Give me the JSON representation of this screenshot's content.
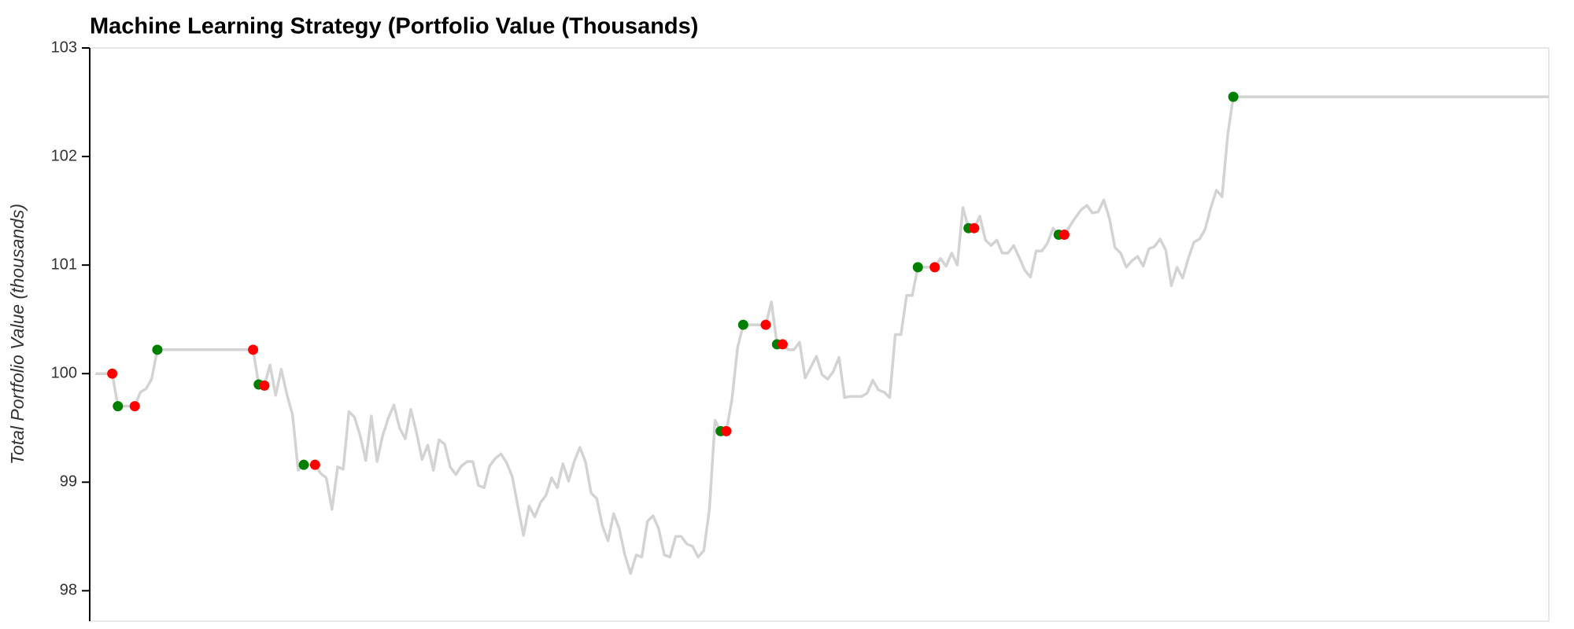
{
  "chart_data": {
    "type": "line",
    "title": "Machine Learning Strategy (Portfolio Value (Thousands)",
    "y_label": "Total Portfolio Value (thousands)",
    "ylim": [
      97.72,
      103
    ],
    "yticks": [
      98,
      99,
      100,
      101,
      102,
      103
    ],
    "xlim": [
      -1,
      258
    ],
    "series": [
      {
        "color": "#d3d3d3",
        "x": [
          0,
          3,
          4,
          7,
          8,
          9,
          10,
          11,
          28,
          29,
          30,
          31,
          32,
          33,
          34,
          35,
          36,
          37,
          39,
          40,
          41,
          42,
          43,
          44,
          45,
          46,
          47,
          48,
          49,
          50,
          51,
          52,
          53,
          54,
          55,
          56,
          57,
          58,
          59,
          60,
          61,
          62,
          63,
          64,
          65,
          66,
          67,
          68,
          69,
          70,
          71,
          72,
          73,
          74,
          75,
          76,
          77,
          78,
          79,
          80,
          81,
          82,
          83,
          84,
          85,
          86,
          87,
          88,
          89,
          90,
          91,
          92,
          93,
          94,
          95,
          96,
          97,
          98,
          99,
          100,
          101,
          102,
          103,
          104,
          105,
          106,
          107,
          108,
          109,
          110,
          111,
          112,
          113,
          114,
          115,
          119,
          120,
          121,
          122,
          123,
          124,
          125,
          126,
          127,
          128,
          129,
          130,
          131,
          132,
          133,
          134,
          135,
          136,
          137,
          138,
          139,
          140,
          141,
          142,
          143,
          144,
          145,
          146,
          149,
          150,
          151,
          152,
          153,
          154,
          155,
          156,
          157,
          158,
          159,
          160,
          161,
          162,
          163,
          164,
          165,
          166,
          167,
          168,
          169,
          170,
          171,
          172,
          173,
          174,
          175,
          176,
          177,
          178,
          179,
          180,
          181,
          182,
          183,
          184,
          185,
          186,
          187,
          188,
          189,
          190,
          191,
          192,
          193,
          194,
          195,
          196,
          197,
          198,
          199,
          200,
          201,
          202,
          258
        ],
        "values": [
          100,
          100,
          99.7,
          99.7,
          99.83,
          99.86,
          99.95,
          100.22,
          100.22,
          99.9,
          99.89,
          100.08,
          99.8,
          100.04,
          99.81,
          99.62,
          99.11,
          99.16,
          99.16,
          99.08,
          99.04,
          98.75,
          99.14,
          99.12,
          99.65,
          99.6,
          99.43,
          99.2,
          99.61,
          99.19,
          99.43,
          99.59,
          99.71,
          99.5,
          99.4,
          99.67,
          99.46,
          99.21,
          99.34,
          99.11,
          99.39,
          99.35,
          99.14,
          99.07,
          99.15,
          99.19,
          99.19,
          98.97,
          98.95,
          99.15,
          99.22,
          99.26,
          99.18,
          99.05,
          98.78,
          98.51,
          98.78,
          98.68,
          98.81,
          98.88,
          99.04,
          98.95,
          99.17,
          99.01,
          99.19,
          99.32,
          99.19,
          98.9,
          98.85,
          98.6,
          98.46,
          98.71,
          98.57,
          98.33,
          98.16,
          98.33,
          98.31,
          98.64,
          98.69,
          98.57,
          98.33,
          98.31,
          98.5,
          98.5,
          98.43,
          98.41,
          98.31,
          98.37,
          98.75,
          99.57,
          99.47,
          99.47,
          99.76,
          100.24,
          100.45,
          100.45,
          100.66,
          100.27,
          100.27,
          100.22,
          100.22,
          100.29,
          99.96,
          100.06,
          100.16,
          99.99,
          99.95,
          100.02,
          100.15,
          99.78,
          99.79,
          99.79,
          99.79,
          99.82,
          99.94,
          99.85,
          99.83,
          99.78,
          100.36,
          100.36,
          100.72,
          100.72,
          100.98,
          100.98,
          101.06,
          100.99,
          101.11,
          101,
          101.53,
          101.34,
          101.34,
          101.45,
          101.23,
          101.18,
          101.23,
          101.11,
          101.11,
          101.18,
          101.07,
          100.95,
          100.89,
          101.13,
          101.13,
          101.2,
          101.34,
          101.28,
          101.28,
          101.36,
          101.44,
          101.51,
          101.55,
          101.48,
          101.49,
          101.6,
          101.43,
          101.16,
          101.11,
          100.98,
          101.04,
          101.08,
          100.99,
          101.15,
          101.17,
          101.24,
          101.14,
          100.81,
          100.98,
          100.88,
          101.06,
          101.21,
          101.24,
          101.33,
          101.53,
          101.69,
          101.63,
          102.2,
          102.55,
          102.55
        ]
      },
      {
        "type": "scatter",
        "color": "#008000",
        "x": [
          4,
          11,
          29,
          37,
          111,
          115,
          121,
          146,
          155,
          171,
          202
        ],
        "values": [
          99.7,
          100.22,
          99.9,
          99.16,
          99.47,
          100.45,
          100.27,
          100.98,
          101.34,
          101.28,
          102.55
        ]
      },
      {
        "type": "scatter",
        "color": "#ff0000",
        "x": [
          3,
          7,
          28,
          30,
          39,
          112,
          119,
          122,
          149,
          156,
          172
        ],
        "values": [
          100,
          99.7,
          100.22,
          99.89,
          99.16,
          99.47,
          100.45,
          100.27,
          100.98,
          101.34,
          101.28
        ]
      }
    ]
  }
}
